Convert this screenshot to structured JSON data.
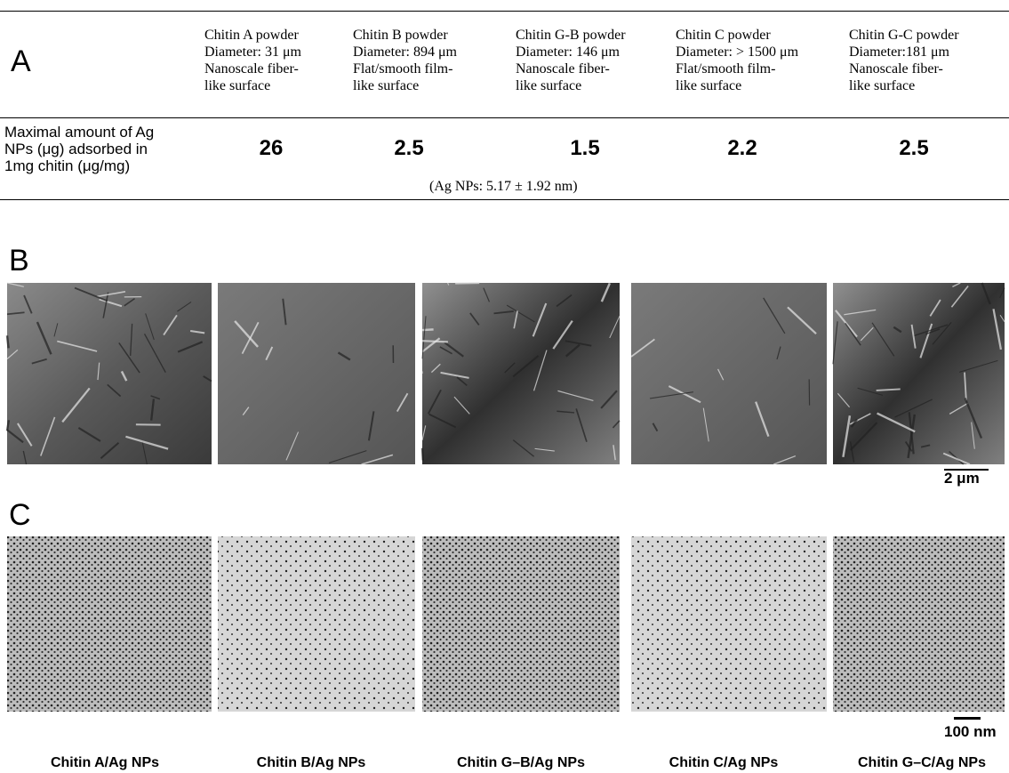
{
  "panels": {
    "a": "A",
    "b": "B",
    "c": "C"
  },
  "table": {
    "columns": [
      [
        "Chitin A powder",
        "Diameter: 31 μm",
        "Nanoscale fiber-",
        "like surface"
      ],
      [
        "Chitin B powder",
        "Diameter: 894 μm",
        "Flat/smooth film-",
        "like surface"
      ],
      [
        "Chitin G-B powder",
        "Diameter: 146 μm",
        "Nanoscale fiber-",
        "like surface"
      ],
      [
        "Chitin C powder",
        "Diameter: > 1500 μm",
        "Flat/smooth film-",
        "like surface"
      ],
      [
        "Chitin G-C powder",
        "Diameter:181 μm",
        "Nanoscale fiber-",
        "like surface"
      ]
    ],
    "row_label": [
      "Maximal amount of Ag",
      "NPs (μg) adsorbed in",
      "1mg chitin (μg/mg)"
    ],
    "values": [
      26,
      2.5,
      1.5,
      2.2,
      2.5
    ],
    "note": "(Ag NPs: 5.17 ± 1.92 nm)"
  },
  "sem_scale": "2 μm",
  "tem_scale": "100 nm",
  "captions": [
    "Chitin A/Ag NPs",
    "Chitin B/Ag NPs",
    "Chitin G–B/Ag NPs",
    "Chitin C/Ag NPs",
    "Chitin G–C/Ag NPs"
  ]
}
